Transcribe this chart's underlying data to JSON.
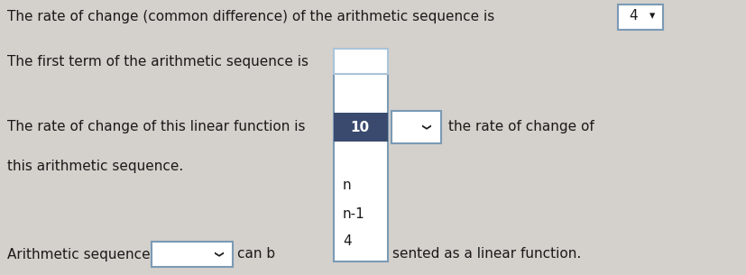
{
  "bg_color": "#d4d0cb",
  "text_color": "#1a1a1a",
  "line1": "The rate of change (common difference) of the arithmetic sequence is",
  "line1_value": "4",
  "line2": "The first term of the arithmetic sequence is",
  "line3_pre": "The rate of change of this linear function is",
  "dropdown_selected": "10",
  "dropdown_items": [
    "n",
    "n-1",
    "4"
  ],
  "line3_post": "the rate of change of",
  "line4": "this arithmetic sequence.",
  "line5_pre": "Arithmetic sequences",
  "line5_mid": "can b",
  "line5_post": "sented as a linear function.",
  "selected_bg": "#3a4a6e",
  "selected_fg": "#ffffff",
  "box_border": "#7a9ab5",
  "box_border_light": "#aac4d8",
  "font_size": 11.0,
  "font_family": "DejaVu Sans"
}
